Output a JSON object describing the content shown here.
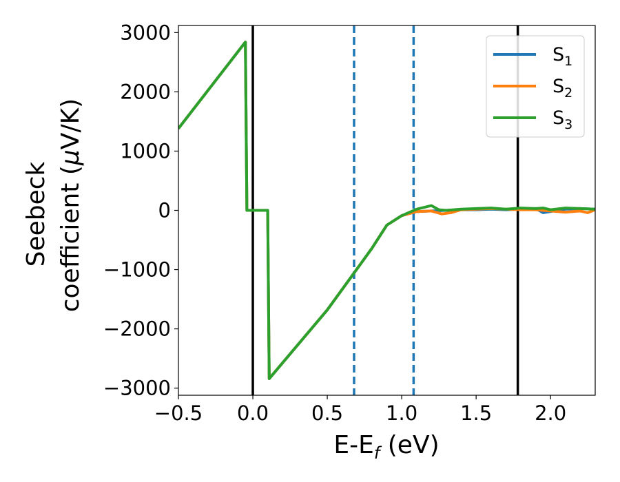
{
  "chart_data": {
    "type": "line",
    "xlabel": "E-E_f (eV)",
    "xlabel_parts": {
      "pre": "E-E",
      "sub": "f",
      "post": " (eV)"
    },
    "ylabel_line1": "Seebeck",
    "ylabel_line2_pre": "coefficient  (",
    "ylabel_mu": "μ",
    "ylabel_line2_post": "V/K)",
    "xlim": [
      -0.5,
      2.3
    ],
    "ylim": [
      -3120,
      3120
    ],
    "xticks": [
      -0.5,
      0.0,
      0.5,
      1.0,
      1.5,
      2.0
    ],
    "xtick_labels": [
      "−0.5",
      "0.0",
      "0.5",
      "1.0",
      "1.5",
      "2.0"
    ],
    "yticks": [
      -3000,
      -2000,
      -1000,
      0,
      1000,
      2000,
      3000
    ],
    "ytick_labels": [
      "−3000",
      "−2000",
      "−1000",
      "0",
      "1000",
      "2000",
      "3000"
    ],
    "grid": false,
    "legend_position": "top-right",
    "vlines": [
      {
        "x": 0.0,
        "color": "#000000",
        "style": "solid"
      },
      {
        "x": 1.78,
        "color": "#000000",
        "style": "solid"
      },
      {
        "x": 0.68,
        "color": "#1f77b4",
        "style": "dashed"
      },
      {
        "x": 1.08,
        "color": "#1f77b4",
        "style": "dashed"
      }
    ],
    "series": [
      {
        "name": "S_1",
        "label_base": "S",
        "label_sub": "1",
        "color": "#1f77b4",
        "points": [
          [
            -0.5,
            1380
          ],
          [
            -0.05,
            2840
          ],
          [
            -0.04,
            0
          ],
          [
            0.1,
            0
          ],
          [
            0.11,
            -2840
          ],
          [
            0.5,
            -1680
          ],
          [
            0.8,
            -640
          ],
          [
            0.9,
            -250
          ],
          [
            1.0,
            -90
          ],
          [
            1.1,
            -20
          ],
          [
            1.2,
            -10
          ],
          [
            1.3,
            0
          ],
          [
            1.4,
            10
          ],
          [
            1.5,
            10
          ],
          [
            1.6,
            20
          ],
          [
            1.7,
            10
          ],
          [
            1.8,
            20
          ],
          [
            1.9,
            30
          ],
          [
            1.95,
            -40
          ],
          [
            2.0,
            -20
          ],
          [
            2.1,
            20
          ],
          [
            2.2,
            30
          ],
          [
            2.3,
            20
          ]
        ]
      },
      {
        "name": "S_2",
        "label_base": "S",
        "label_sub": "2",
        "color": "#ff7f0e",
        "points": [
          [
            -0.5,
            1380
          ],
          [
            -0.05,
            2840
          ],
          [
            -0.04,
            0
          ],
          [
            0.1,
            0
          ],
          [
            0.11,
            -2840
          ],
          [
            0.5,
            -1680
          ],
          [
            0.8,
            -640
          ],
          [
            0.9,
            -250
          ],
          [
            1.0,
            -90
          ],
          [
            1.1,
            -20
          ],
          [
            1.2,
            -10
          ],
          [
            1.27,
            -60
          ],
          [
            1.33,
            -40
          ],
          [
            1.4,
            10
          ],
          [
            1.5,
            20
          ],
          [
            1.6,
            30
          ],
          [
            1.7,
            20
          ],
          [
            1.8,
            10
          ],
          [
            1.9,
            10
          ],
          [
            2.0,
            -10
          ],
          [
            2.1,
            -30
          ],
          [
            2.2,
            -10
          ],
          [
            2.25,
            -40
          ],
          [
            2.3,
            10
          ]
        ]
      },
      {
        "name": "S_3",
        "label_base": "S",
        "label_sub": "3",
        "color": "#2ca02c",
        "points": [
          [
            -0.5,
            1380
          ],
          [
            -0.05,
            2840
          ],
          [
            -0.04,
            0
          ],
          [
            0.1,
            0
          ],
          [
            0.11,
            -2840
          ],
          [
            0.5,
            -1680
          ],
          [
            0.8,
            -640
          ],
          [
            0.9,
            -250
          ],
          [
            1.0,
            -90
          ],
          [
            1.1,
            20
          ],
          [
            1.15,
            50
          ],
          [
            1.2,
            80
          ],
          [
            1.25,
            10
          ],
          [
            1.3,
            0
          ],
          [
            1.4,
            20
          ],
          [
            1.5,
            30
          ],
          [
            1.6,
            40
          ],
          [
            1.7,
            20
          ],
          [
            1.8,
            40
          ],
          [
            1.9,
            30
          ],
          [
            1.95,
            40
          ],
          [
            2.0,
            10
          ],
          [
            2.1,
            40
          ],
          [
            2.2,
            30
          ],
          [
            2.3,
            20
          ]
        ]
      }
    ]
  }
}
